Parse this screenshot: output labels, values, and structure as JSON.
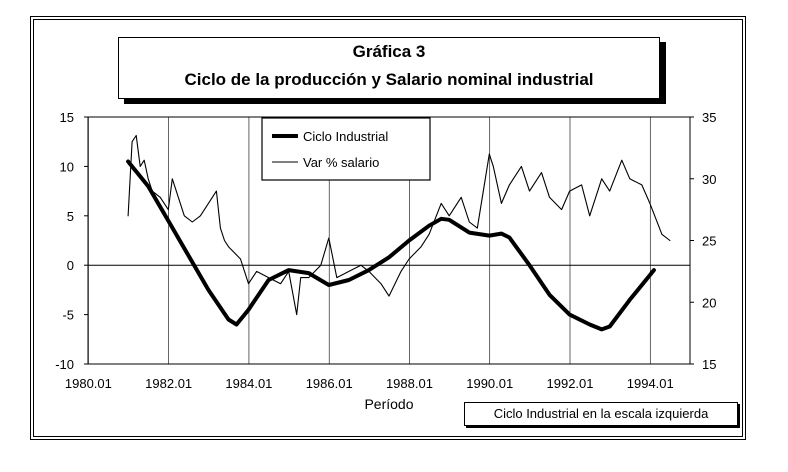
{
  "chart_data": {
    "type": "line",
    "title": "Gráfica 3",
    "subtitle": "Ciclo de la producción y Salario nominal industrial",
    "xlabel": "Período",
    "note": "Ciclo Industrial en la escala izquierda",
    "x_ticks": [
      "1980.01",
      "1982.01",
      "1984.01",
      "1986.01",
      "1988.01",
      "1990.01",
      "1992.01",
      "1994.01"
    ],
    "xlim": [
      1980.0,
      1995.0
    ],
    "y_left": {
      "lim": [
        -10,
        15
      ],
      "ticks": [
        "-10",
        "-5",
        "0",
        "5",
        "10",
        "15"
      ]
    },
    "y_right": {
      "lim": [
        15,
        35
      ],
      "ticks": [
        "15",
        "20",
        "25",
        "30",
        "35"
      ]
    },
    "grid_x": true,
    "legend_position": "top-center",
    "series": [
      {
        "name": "Ciclo Industrial",
        "axis": "left",
        "style": "thick",
        "x": [
          1981.0,
          1981.5,
          1982.0,
          1982.5,
          1983.0,
          1983.5,
          1983.7,
          1984.0,
          1984.5,
          1985.0,
          1985.5,
          1986.0,
          1986.5,
          1987.0,
          1987.5,
          1988.0,
          1988.5,
          1988.8,
          1989.0,
          1989.5,
          1990.0,
          1990.3,
          1990.5,
          1991.0,
          1991.5,
          1992.0,
          1992.5,
          1992.8,
          1993.0,
          1993.5,
          1994.0,
          1994.1
        ],
        "values": [
          10.5,
          8.0,
          4.5,
          1.0,
          -2.5,
          -5.5,
          -6.0,
          -4.5,
          -1.5,
          -0.5,
          -0.8,
          -2.0,
          -1.5,
          -0.5,
          0.8,
          2.5,
          4.0,
          4.7,
          4.6,
          3.3,
          3.0,
          3.2,
          2.8,
          0.0,
          -3.0,
          -5.0,
          -6.0,
          -6.5,
          -6.2,
          -3.5,
          -1.0,
          -0.5
        ]
      },
      {
        "name": "Var % salario",
        "axis": "right",
        "style": "thin",
        "x": [
          1981.0,
          1981.1,
          1981.2,
          1981.3,
          1981.4,
          1981.5,
          1981.6,
          1981.8,
          1982.0,
          1982.1,
          1982.2,
          1982.4,
          1982.6,
          1982.8,
          1983.0,
          1983.2,
          1983.3,
          1983.4,
          1983.5,
          1983.8,
          1984.0,
          1984.2,
          1984.5,
          1984.8,
          1985.0,
          1985.2,
          1985.3,
          1985.5,
          1985.8,
          1986.0,
          1986.2,
          1986.5,
          1986.8,
          1987.0,
          1987.3,
          1987.5,
          1987.8,
          1988.0,
          1988.3,
          1988.5,
          1988.8,
          1989.0,
          1989.3,
          1989.5,
          1989.7,
          1990.0,
          1990.1,
          1990.3,
          1990.5,
          1990.8,
          1991.0,
          1991.3,
          1991.5,
          1991.8,
          1992.0,
          1992.3,
          1992.5,
          1992.8,
          1993.0,
          1993.3,
          1993.5,
          1993.8,
          1994.0,
          1994.3,
          1994.5
        ],
        "values": [
          27.0,
          33.0,
          33.5,
          31.0,
          31.5,
          30.0,
          29.0,
          28.5,
          27.5,
          30.0,
          29.0,
          27.0,
          26.5,
          27.0,
          28.0,
          29.0,
          26.0,
          25.0,
          24.5,
          23.5,
          21.5,
          22.5,
          22.0,
          21.5,
          22.5,
          19.0,
          22.0,
          22.0,
          23.0,
          25.2,
          22.0,
          22.5,
          23.0,
          22.5,
          21.5,
          20.5,
          22.5,
          23.5,
          24.5,
          25.5,
          28.0,
          27.0,
          28.5,
          26.5,
          26.0,
          32.0,
          31.0,
          28.0,
          29.5,
          31.0,
          29.0,
          30.5,
          28.5,
          27.5,
          29.0,
          29.5,
          27.0,
          30.0,
          29.0,
          31.5,
          30.0,
          29.5,
          28.0,
          25.5,
          25.0
        ]
      }
    ]
  }
}
